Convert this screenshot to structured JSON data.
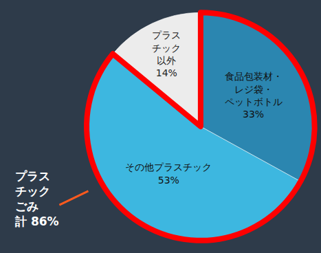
{
  "chart_data": {
    "type": "pie",
    "categories": [
      "食品包装材・レジ袋・ペットボトル",
      "その他プラスチック",
      "プラスチック以外"
    ],
    "values": [
      33,
      53,
      14
    ],
    "value_labels": [
      "33%",
      "53%",
      "14%"
    ],
    "colors": [
      "#2b86b0",
      "#3db7e0",
      "#ececec"
    ],
    "data_labels": true,
    "annotations": [
      {
        "text": "プラスチックごみ 計 86%"
      }
    ]
  }
}
